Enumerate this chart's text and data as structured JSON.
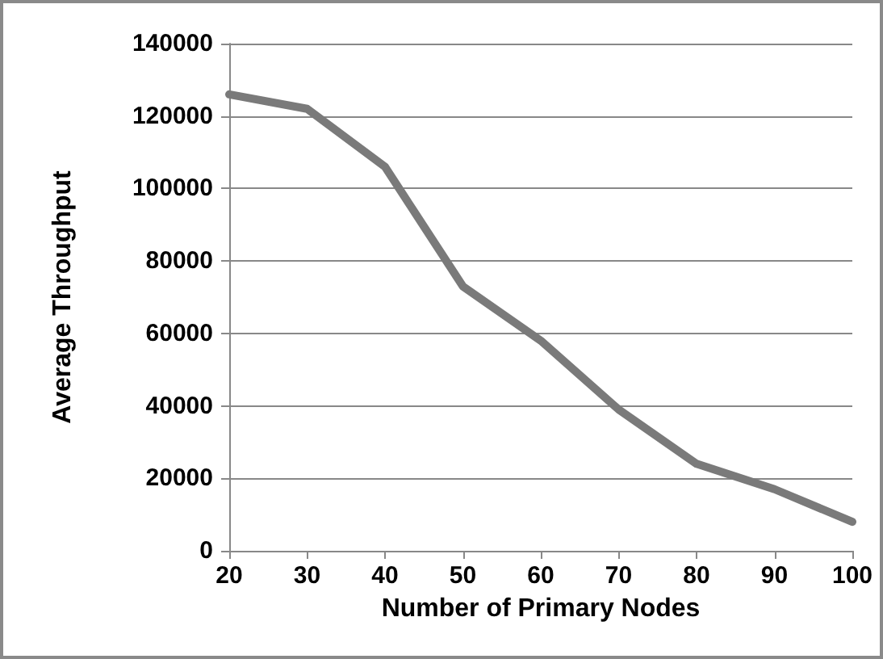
{
  "chart_data": {
    "type": "line",
    "xlabel": "Number of Primary Nodes",
    "ylabel": "Average Throughput",
    "categories": [
      "20",
      "30",
      "40",
      "50",
      "60",
      "70",
      "80",
      "90",
      "100"
    ],
    "series": [
      {
        "color": "#7a7a7a",
        "values": [
          126000,
          122000,
          106000,
          73000,
          58000,
          39000,
          24000,
          17000,
          8000
        ]
      }
    ],
    "ylim": [
      0,
      140000
    ],
    "yticks": [
      0,
      20000,
      40000,
      60000,
      80000,
      100000,
      120000,
      140000
    ],
    "grid": "y",
    "marker": "none",
    "line_style": "solid"
  }
}
